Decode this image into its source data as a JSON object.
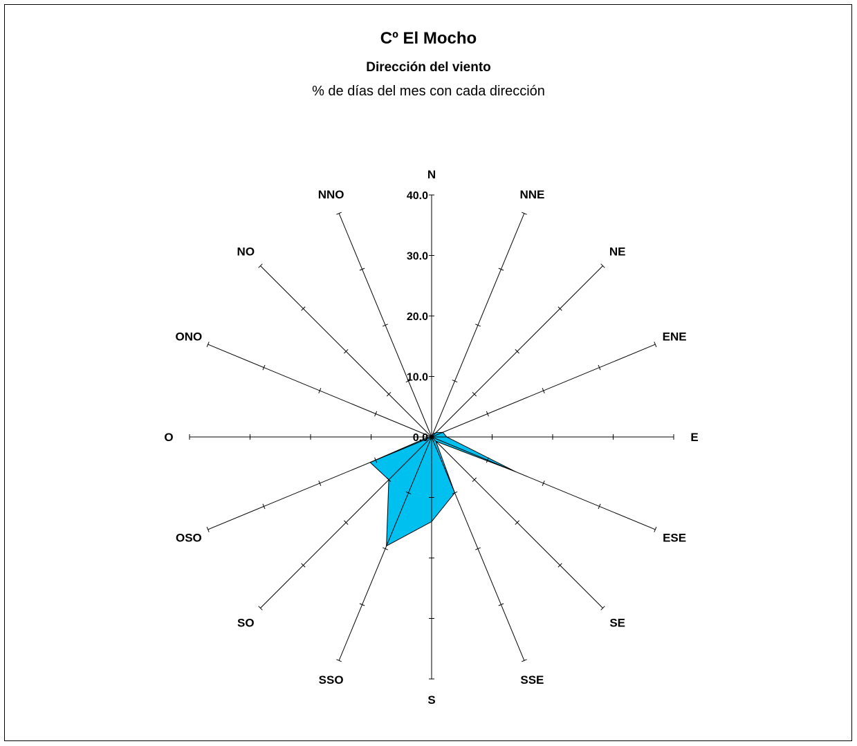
{
  "chart_data": {
    "type": "radar",
    "title": "Cº El Mocho",
    "subtitle": "Dirección del viento",
    "caption": "% de días del mes con cada dirección",
    "directions": [
      "N",
      "NNE",
      "NE",
      "ENE",
      "E",
      "ESE",
      "SE",
      "SSE",
      "S",
      "SSO",
      "SO",
      "OSO",
      "O",
      "ONO",
      "NO",
      "NNO"
    ],
    "values": [
      0.0,
      0.5,
      1.0,
      2.0,
      2.5,
      15.0,
      1.0,
      10.0,
      14.0,
      19.5,
      10.0,
      11.0,
      0.5,
      0.0,
      0.0,
      0.0
    ],
    "radial_ticks": [
      "0.0",
      "10.0",
      "20.0",
      "30.0",
      "40.0"
    ],
    "rmax": 40,
    "fill_color": "#00c0f0",
    "grid": false
  }
}
